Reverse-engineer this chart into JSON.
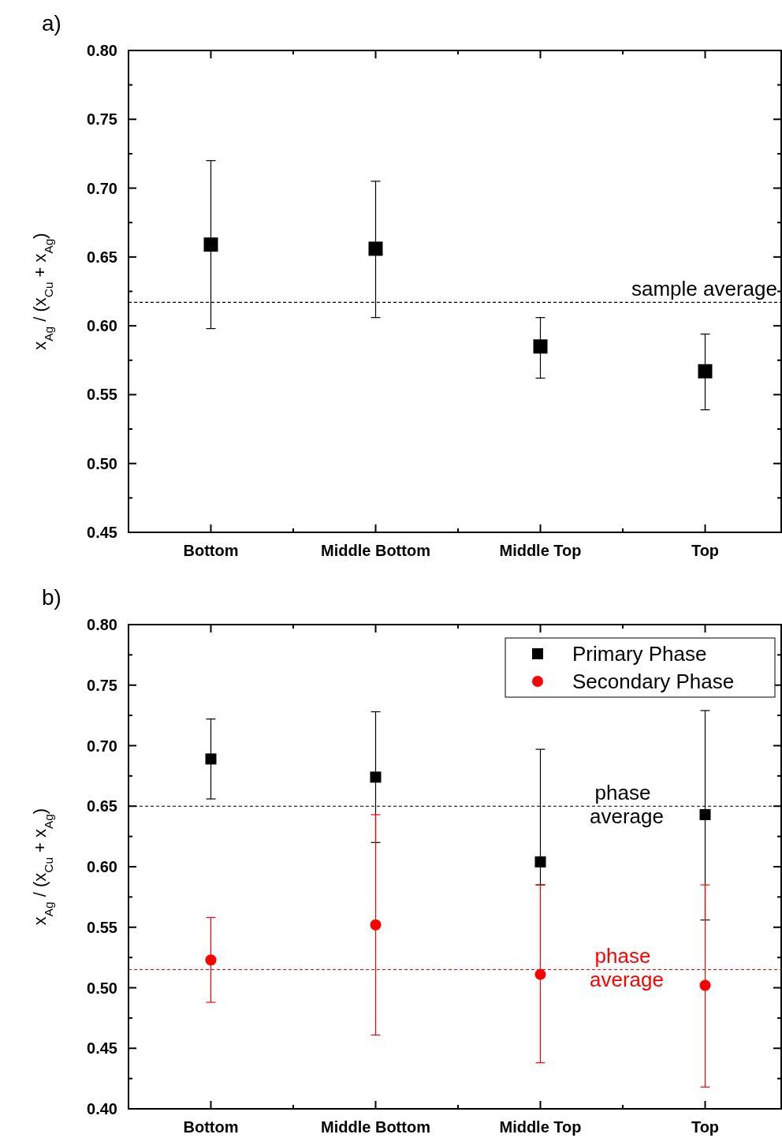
{
  "chart_data": [
    {
      "type": "scatter",
      "title": "a)",
      "ylabel": "x$_{Ag}$ / (x$_{Cu}$ + x$_{Ag}$)",
      "categories": [
        "Bottom",
        "Middle Bottom",
        "Middle Top",
        "Top"
      ],
      "ylim": [
        0.45,
        0.8
      ],
      "yticks": [
        {
          "value": 0.45,
          "label": "0.45"
        },
        {
          "value": 0.5,
          "label": "0.50"
        },
        {
          "value": 0.55,
          "label": "0.55"
        },
        {
          "value": 0.6,
          "label": "0.60"
        },
        {
          "value": 0.65,
          "label": "0.65"
        },
        {
          "value": 0.7,
          "label": "0.70"
        },
        {
          "value": 0.75,
          "label": "0.75"
        },
        {
          "value": 0.8,
          "label": "0.80"
        }
      ],
      "marker": "square",
      "grid": false,
      "legend": false,
      "series": [
        {
          "color": "#000000",
          "values": [
            0.659,
            0.656,
            0.585,
            0.567
          ],
          "errors": [
            [
              0.598,
              0.72
            ],
            [
              0.606,
              0.705
            ],
            [
              0.562,
              0.606
            ],
            [
              0.539,
              0.594
            ]
          ]
        }
      ],
      "ref_lines": [
        {
          "axis": "y",
          "value": 0.617,
          "label": "sample average",
          "color": "#000000",
          "line_style": "dashed"
        }
      ]
    },
    {
      "type": "scatter",
      "title": "b)",
      "ylabel": "x$_{Ag}$ / (x$_{Cu}$ + x$_{Ag}$)",
      "categories": [
        "Bottom",
        "Middle Bottom",
        "Middle Top",
        "Top"
      ],
      "ylim": [
        0.4,
        0.8
      ],
      "yticks": [
        {
          "value": 0.4,
          "label": "0.40"
        },
        {
          "value": 0.45,
          "label": "0.45"
        },
        {
          "value": 0.5,
          "label": "0.50"
        },
        {
          "value": 0.55,
          "label": "0.55"
        },
        {
          "value": 0.6,
          "label": "0.60"
        },
        {
          "value": 0.65,
          "label": "0.65"
        },
        {
          "value": 0.7,
          "label": "0.70"
        },
        {
          "value": 0.75,
          "label": "0.75"
        },
        {
          "value": 0.8,
          "label": "0.80"
        }
      ],
      "grid": false,
      "legend": "top right",
      "series": [
        {
          "name": "Primary Phase",
          "color": "#000000",
          "marker": "square",
          "values": [
            0.689,
            0.674,
            0.604,
            0.643
          ],
          "errors": [
            [
              0.656,
              0.722
            ],
            [
              0.62,
              0.728
            ],
            [
              0.585,
              0.697
            ],
            [
              0.556,
              0.729
            ]
          ]
        },
        {
          "name": "Secondary Phase",
          "color": "#ff0000",
          "marker": "circle",
          "values": [
            0.523,
            0.552,
            0.511,
            0.502
          ],
          "errors": [
            [
              0.488,
              0.558
            ],
            [
              0.461,
              0.643
            ],
            [
              0.438,
              0.585
            ],
            [
              0.418,
              0.585
            ]
          ]
        }
      ],
      "ref_lines": [
        {
          "axis": "y",
          "value": 0.65,
          "label": "phase average",
          "color": "#000000",
          "line_style": "dashed"
        },
        {
          "axis": "y",
          "value": 0.515,
          "label": "phase average",
          "color": "#ff0000",
          "line_style": "dashed"
        }
      ]
    }
  ]
}
